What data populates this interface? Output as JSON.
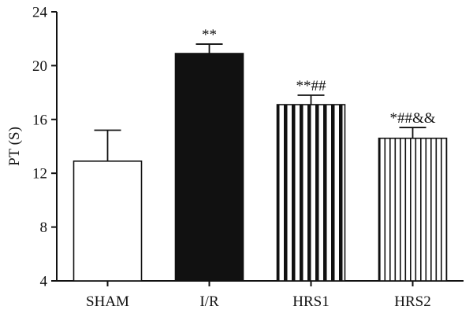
{
  "chart_data": {
    "type": "bar",
    "title": "",
    "xlabel": "",
    "ylabel": "PT (S)",
    "ylim": [
      4,
      24
    ],
    "yticks": [
      4,
      8,
      12,
      16,
      20,
      24
    ],
    "grid": false,
    "categories": [
      "SHAM",
      "I/R",
      "HRS1",
      "HRS2"
    ],
    "values": [
      12.9,
      20.9,
      17.1,
      14.6
    ],
    "errors": [
      2.3,
      0.7,
      0.7,
      0.8
    ],
    "fills": [
      "white",
      "solid-black",
      "wide-vertical-stripes",
      "narrow-vertical-stripes"
    ],
    "annotations": [
      "",
      "**",
      "**##",
      "*##&&"
    ]
  }
}
